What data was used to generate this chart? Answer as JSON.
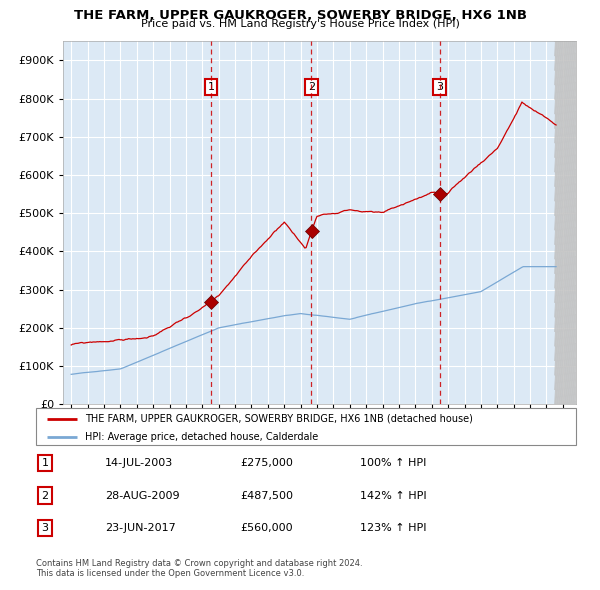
{
  "title": "THE FARM, UPPER GAUKROGER, SOWERBY BRIDGE, HX6 1NB",
  "subtitle": "Price paid vs. HM Land Registry's House Price Index (HPI)",
  "legend_line1": "THE FARM, UPPER GAUKROGER, SOWERBY BRIDGE, HX6 1NB (detached house)",
  "legend_line2": "HPI: Average price, detached house, Calderdale",
  "transactions": [
    {
      "num": 1,
      "date": "14-JUL-2003",
      "year": 2003.54,
      "price": 275000,
      "pct": "100%",
      "direction": "↑"
    },
    {
      "num": 2,
      "date": "28-AUG-2009",
      "year": 2009.66,
      "price": 487500,
      "pct": "142%",
      "direction": "↑"
    },
    {
      "num": 3,
      "date": "23-JUN-2017",
      "year": 2017.48,
      "price": 560000,
      "pct": "123%",
      "direction": "↑"
    }
  ],
  "yticks": [
    0,
    100000,
    200000,
    300000,
    400000,
    500000,
    600000,
    700000,
    800000,
    900000
  ],
  "ylim": [
    0,
    950000
  ],
  "xlim_start": 1994.5,
  "xlim_end": 2025.8,
  "data_end": 2024.5,
  "hpi_color": "#7aa8d4",
  "price_color": "#cc0000",
  "background_color": "#dce9f5",
  "grid_color": "#ffffff",
  "hatch_color": "#bbbbbb",
  "footnote_line1": "Contains HM Land Registry data © Crown copyright and database right 2024.",
  "footnote_line2": "This data is licensed under the Open Government Licence v3.0."
}
